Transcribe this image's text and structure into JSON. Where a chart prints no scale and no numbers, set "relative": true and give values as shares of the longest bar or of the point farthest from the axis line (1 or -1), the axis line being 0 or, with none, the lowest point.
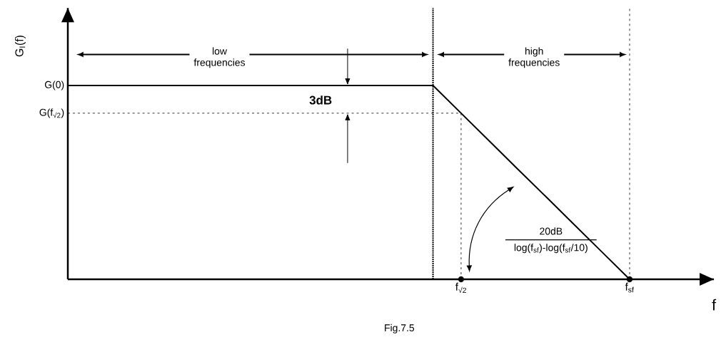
{
  "chart_data": {
    "type": "line",
    "relative": true,
    "xlabel": "f",
    "ylabel": "G$_{I}$(f)",
    "color": "#000000",
    "categories": [
      null,
      null,
      null,
      null,
      null,
      null,
      null,
      null,
      null,
      null,
      null,
      null,
      null,
      null,
      "f$_{√2}$",
      null,
      null,
      null,
      null,
      null,
      "f$_{sf}$"
    ],
    "series": [
      {
        "values": [
          1,
          1,
          1,
          1,
          1,
          1,
          1,
          1,
          1,
          1,
          1,
          1,
          1,
          1,
          0.857,
          0.714,
          0.571,
          0.429,
          0.286,
          0.143,
          0
        ]
      },
      {
        "type": "scatter",
        "x": [
          "f$_{√2}$",
          "f$_{sf}$"
        ],
        "values": [
          0,
          0
        ],
        "marker": "circle"
      }
    ],
    "ref_lines": [
      {
        "axis": "x",
        "value": "f$_{√2}$",
        "line_style": "dashed"
      },
      {
        "axis": "x",
        "value": "f$_{sf}$",
        "line_style": "dashed"
      },
      {
        "axis": "y",
        "value": 0.857,
        "line_style": "dashed"
      }
    ],
    "annotations": [
      "low frequencies",
      "high frequencies",
      "3dB",
      "20dB",
      "log(f$_{sf}$)-log(f$_{sf}$/10)",
      "Fig.7.5",
      "G(0)",
      "G(f$_{√2}$)"
    ]
  }
}
